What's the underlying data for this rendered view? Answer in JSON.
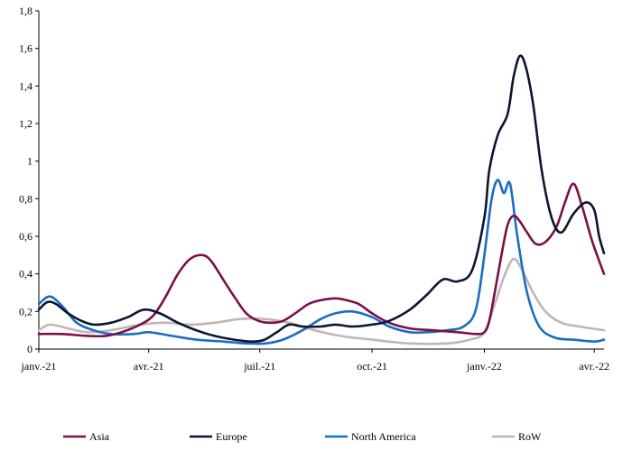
{
  "chart_data": {
    "type": "line",
    "title": "",
    "xlabel": "",
    "ylabel": "",
    "ylim": [
      0,
      1.8
    ],
    "yticks": [
      "0",
      "0,2",
      "0,4",
      "0,6",
      "0,8",
      "1",
      "1,2",
      "1,4",
      "1,6",
      "1,8"
    ],
    "xticks": [
      "janv.-21",
      "avr.-21",
      "juil.-21",
      "oct.-21",
      "janv.-22",
      "avr.-22"
    ],
    "x_tick_dates": [
      "2021-01-01",
      "2021-04-01",
      "2021-07-01",
      "2021-10-01",
      "2022-01-01",
      "2022-04-01"
    ],
    "x_range": [
      "2021-01-01",
      "2022-04-09"
    ],
    "grid": false,
    "legend_position": "bottom",
    "series": [
      {
        "name": "Asia",
        "color": "#7b1048",
        "points": [
          [
            "2021-01-01",
            0.08
          ],
          [
            "2021-01-20",
            0.08
          ],
          [
            "2021-02-10",
            0.07
          ],
          [
            "2021-02-25",
            0.07
          ],
          [
            "2021-03-10",
            0.09
          ],
          [
            "2021-03-25",
            0.13
          ],
          [
            "2021-04-05",
            0.18
          ],
          [
            "2021-04-15",
            0.28
          ],
          [
            "2021-04-25",
            0.4
          ],
          [
            "2021-05-05",
            0.48
          ],
          [
            "2021-05-15",
            0.5
          ],
          [
            "2021-05-22",
            0.47
          ],
          [
            "2021-06-01",
            0.37
          ],
          [
            "2021-06-10",
            0.28
          ],
          [
            "2021-06-20",
            0.19
          ],
          [
            "2021-06-30",
            0.15
          ],
          [
            "2021-07-10",
            0.14
          ],
          [
            "2021-07-20",
            0.15
          ],
          [
            "2021-07-30",
            0.19
          ],
          [
            "2021-08-10",
            0.24
          ],
          [
            "2021-08-20",
            0.26
          ],
          [
            "2021-09-01",
            0.27
          ],
          [
            "2021-09-10",
            0.26
          ],
          [
            "2021-09-20",
            0.24
          ],
          [
            "2021-10-01",
            0.19
          ],
          [
            "2021-10-15",
            0.14
          ],
          [
            "2021-11-01",
            0.11
          ],
          [
            "2021-11-20",
            0.1
          ],
          [
            "2021-12-10",
            0.09
          ],
          [
            "2021-12-25",
            0.08
          ],
          [
            "2022-01-01",
            0.09
          ],
          [
            "2022-01-05",
            0.15
          ],
          [
            "2022-01-10",
            0.32
          ],
          [
            "2022-01-15",
            0.5
          ],
          [
            "2022-01-20",
            0.66
          ],
          [
            "2022-01-25",
            0.71
          ],
          [
            "2022-01-30",
            0.68
          ],
          [
            "2022-02-05",
            0.62
          ],
          [
            "2022-02-12",
            0.56
          ],
          [
            "2022-02-20",
            0.57
          ],
          [
            "2022-03-01",
            0.65
          ],
          [
            "2022-03-08",
            0.78
          ],
          [
            "2022-03-15",
            0.88
          ],
          [
            "2022-03-22",
            0.76
          ],
          [
            "2022-03-30",
            0.58
          ],
          [
            "2022-04-05",
            0.47
          ],
          [
            "2022-04-09",
            0.4
          ]
        ]
      },
      {
        "name": "Europe",
        "color": "#0a1630",
        "points": [
          [
            "2021-01-01",
            0.21
          ],
          [
            "2021-01-08",
            0.25
          ],
          [
            "2021-01-15",
            0.24
          ],
          [
            "2021-01-25",
            0.19
          ],
          [
            "2021-02-05",
            0.15
          ],
          [
            "2021-02-15",
            0.13
          ],
          [
            "2021-03-01",
            0.14
          ],
          [
            "2021-03-15",
            0.17
          ],
          [
            "2021-03-28",
            0.21
          ],
          [
            "2021-04-10",
            0.19
          ],
          [
            "2021-04-25",
            0.14
          ],
          [
            "2021-05-10",
            0.1
          ],
          [
            "2021-05-25",
            0.07
          ],
          [
            "2021-06-10",
            0.05
          ],
          [
            "2021-06-25",
            0.04
          ],
          [
            "2021-07-05",
            0.05
          ],
          [
            "2021-07-15",
            0.09
          ],
          [
            "2021-07-25",
            0.13
          ],
          [
            "2021-08-05",
            0.12
          ],
          [
            "2021-08-20",
            0.12
          ],
          [
            "2021-09-01",
            0.13
          ],
          [
            "2021-09-15",
            0.12
          ],
          [
            "2021-10-01",
            0.13
          ],
          [
            "2021-10-15",
            0.15
          ],
          [
            "2021-11-01",
            0.21
          ],
          [
            "2021-11-15",
            0.29
          ],
          [
            "2021-11-28",
            0.37
          ],
          [
            "2021-12-10",
            0.36
          ],
          [
            "2021-12-22",
            0.42
          ],
          [
            "2022-01-01",
            0.7
          ],
          [
            "2022-01-05",
            0.95
          ],
          [
            "2022-01-12",
            1.14
          ],
          [
            "2022-01-20",
            1.25
          ],
          [
            "2022-01-25",
            1.45
          ],
          [
            "2022-01-30",
            1.56
          ],
          [
            "2022-02-04",
            1.5
          ],
          [
            "2022-02-10",
            1.3
          ],
          [
            "2022-02-17",
            0.95
          ],
          [
            "2022-02-25",
            0.7
          ],
          [
            "2022-03-05",
            0.62
          ],
          [
            "2022-03-15",
            0.72
          ],
          [
            "2022-03-25",
            0.78
          ],
          [
            "2022-04-01",
            0.74
          ],
          [
            "2022-04-05",
            0.6
          ],
          [
            "2022-04-09",
            0.51
          ]
        ]
      },
      {
        "name": "North America",
        "color": "#1a6ec0",
        "points": [
          [
            "2021-01-01",
            0.24
          ],
          [
            "2021-01-10",
            0.28
          ],
          [
            "2021-01-20",
            0.23
          ],
          [
            "2021-02-01",
            0.14
          ],
          [
            "2021-02-15",
            0.1
          ],
          [
            "2021-03-01",
            0.08
          ],
          [
            "2021-03-20",
            0.08
          ],
          [
            "2021-04-01",
            0.09
          ],
          [
            "2021-04-20",
            0.07
          ],
          [
            "2021-05-10",
            0.05
          ],
          [
            "2021-06-01",
            0.04
          ],
          [
            "2021-06-20",
            0.03
          ],
          [
            "2021-07-05",
            0.03
          ],
          [
            "2021-07-20",
            0.05
          ],
          [
            "2021-08-05",
            0.1
          ],
          [
            "2021-08-20",
            0.16
          ],
          [
            "2021-09-01",
            0.19
          ],
          [
            "2021-09-15",
            0.2
          ],
          [
            "2021-10-01",
            0.17
          ],
          [
            "2021-10-15",
            0.12
          ],
          [
            "2021-11-01",
            0.09
          ],
          [
            "2021-11-15",
            0.09
          ],
          [
            "2021-12-01",
            0.1
          ],
          [
            "2021-12-15",
            0.12
          ],
          [
            "2021-12-25",
            0.21
          ],
          [
            "2022-01-01",
            0.5
          ],
          [
            "2022-01-07",
            0.8
          ],
          [
            "2022-01-12",
            0.9
          ],
          [
            "2022-01-17",
            0.83
          ],
          [
            "2022-01-22",
            0.88
          ],
          [
            "2022-01-28",
            0.6
          ],
          [
            "2022-02-05",
            0.3
          ],
          [
            "2022-02-15",
            0.12
          ],
          [
            "2022-02-28",
            0.06
          ],
          [
            "2022-03-15",
            0.05
          ],
          [
            "2022-04-01",
            0.04
          ],
          [
            "2022-04-09",
            0.05
          ]
        ]
      },
      {
        "name": "RoW",
        "color": "#c4b5b3",
        "points": [
          [
            "2021-01-01",
            0.1
          ],
          [
            "2021-01-10",
            0.13
          ],
          [
            "2021-01-25",
            0.11
          ],
          [
            "2021-02-10",
            0.09
          ],
          [
            "2021-03-01",
            0.1
          ],
          [
            "2021-03-25",
            0.13
          ],
          [
            "2021-04-15",
            0.14
          ],
          [
            "2021-05-05",
            0.13
          ],
          [
            "2021-05-25",
            0.14
          ],
          [
            "2021-06-15",
            0.16
          ],
          [
            "2021-07-05",
            0.16
          ],
          [
            "2021-07-25",
            0.14
          ],
          [
            "2021-08-15",
            0.1
          ],
          [
            "2021-09-05",
            0.07
          ],
          [
            "2021-10-01",
            0.05
          ],
          [
            "2021-11-01",
            0.03
          ],
          [
            "2021-12-01",
            0.03
          ],
          [
            "2021-12-20",
            0.05
          ],
          [
            "2022-01-01",
            0.09
          ],
          [
            "2022-01-10",
            0.25
          ],
          [
            "2022-01-18",
            0.4
          ],
          [
            "2022-01-25",
            0.48
          ],
          [
            "2022-02-01",
            0.42
          ],
          [
            "2022-02-10",
            0.3
          ],
          [
            "2022-02-20",
            0.2
          ],
          [
            "2022-03-05",
            0.14
          ],
          [
            "2022-03-20",
            0.12
          ],
          [
            "2022-04-09",
            0.1
          ]
        ]
      }
    ]
  }
}
